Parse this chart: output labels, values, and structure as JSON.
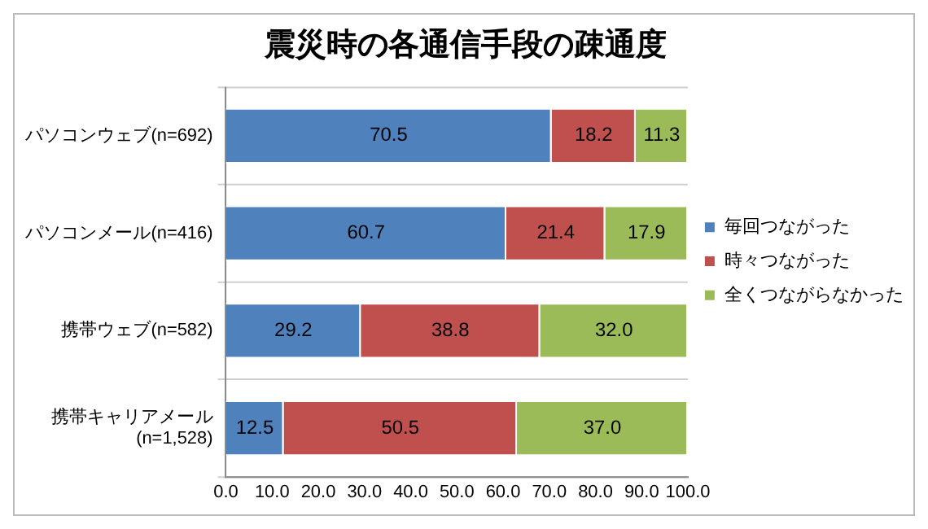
{
  "chart_data": {
    "type": "bar",
    "orientation": "horizontal",
    "stacked": true,
    "title": "震災時の各通信手段の疎通度",
    "categories": [
      "パソコンウェブ(n=692)",
      "パソコンメール(n=416)",
      "携帯ウェブ(n=582)",
      "携帯キャリアメール\n(n=1,528)"
    ],
    "series": [
      {
        "name": "毎回つながった",
        "color": "#4f81bd",
        "values": [
          70.5,
          60.7,
          29.2,
          12.5
        ],
        "value_labels": [
          "70.5",
          "60.7",
          "29.2",
          "12.5"
        ]
      },
      {
        "name": "時々つながった",
        "color": "#c0504d",
        "values": [
          18.2,
          21.4,
          38.8,
          50.5
        ],
        "value_labels": [
          "18.2",
          "21.4",
          "38.8",
          "50.5"
        ]
      },
      {
        "name": "全くつながらなかった",
        "color": "#9bbb59",
        "values": [
          11.3,
          17.9,
          32.0,
          37.0
        ],
        "value_labels": [
          "11.3",
          "17.9",
          "32.0",
          "37.0"
        ]
      }
    ],
    "xlim": [
      0,
      100
    ],
    "xticks": [
      {
        "value": 0,
        "label": "0.0"
      },
      {
        "value": 10,
        "label": "10.0"
      },
      {
        "value": 20,
        "label": "20.0"
      },
      {
        "value": 30,
        "label": "30.0"
      },
      {
        "value": 40,
        "label": "40.0"
      },
      {
        "value": 50,
        "label": "50.0"
      },
      {
        "value": 60,
        "label": "60.0"
      },
      {
        "value": 70,
        "label": "70.0"
      },
      {
        "value": 80,
        "label": "80.0"
      },
      {
        "value": 90,
        "label": "90.0"
      },
      {
        "value": 100,
        "label": "100.0"
      }
    ],
    "grid": "y",
    "legend": "right"
  }
}
